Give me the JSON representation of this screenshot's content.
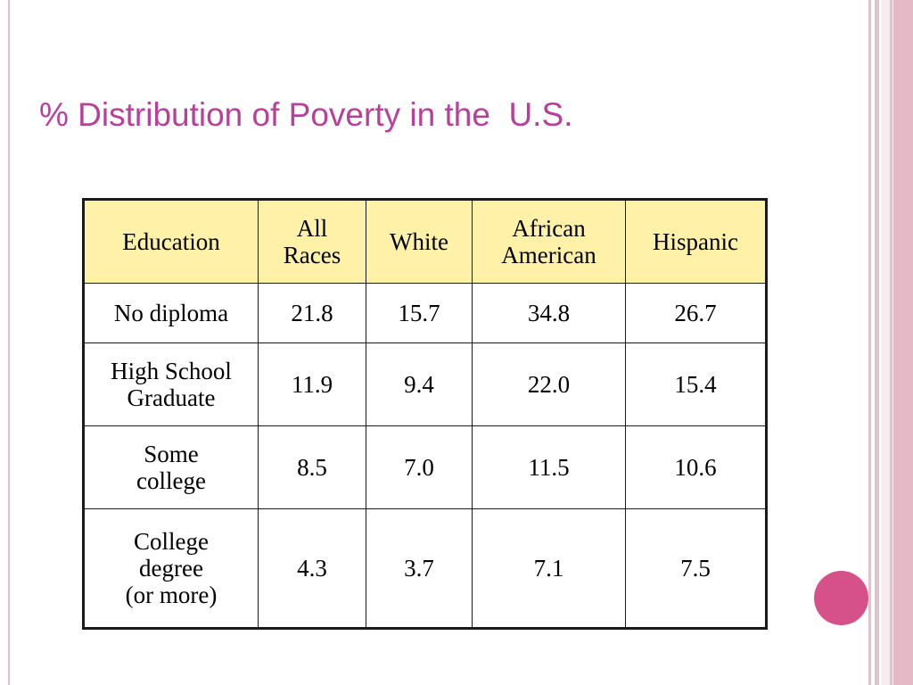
{
  "slide": {
    "title": "% Distribution of Poverty in the  U.S."
  },
  "table": {
    "headers": [
      "Education",
      "All\nRaces",
      "White",
      "African\nAmerican",
      "Hispanic"
    ],
    "rows": [
      [
        "No diploma",
        "21.8",
        "15.7",
        "34.8",
        "26.7"
      ],
      [
        "High School\nGraduate",
        "11.9",
        "9.4",
        "22.0",
        "15.4"
      ],
      [
        "Some\ncollege",
        "8.5",
        "7.0",
        "11.5",
        "10.6"
      ],
      [
        "College\ndegree\n(or more)",
        "4.3",
        "3.7",
        "7.1",
        "7.5"
      ]
    ]
  },
  "colors": {
    "title": "#b8409a",
    "header_fill": "#fff2a8",
    "accent_circle": "#d6508a",
    "stripe": "#e6b9c6"
  }
}
